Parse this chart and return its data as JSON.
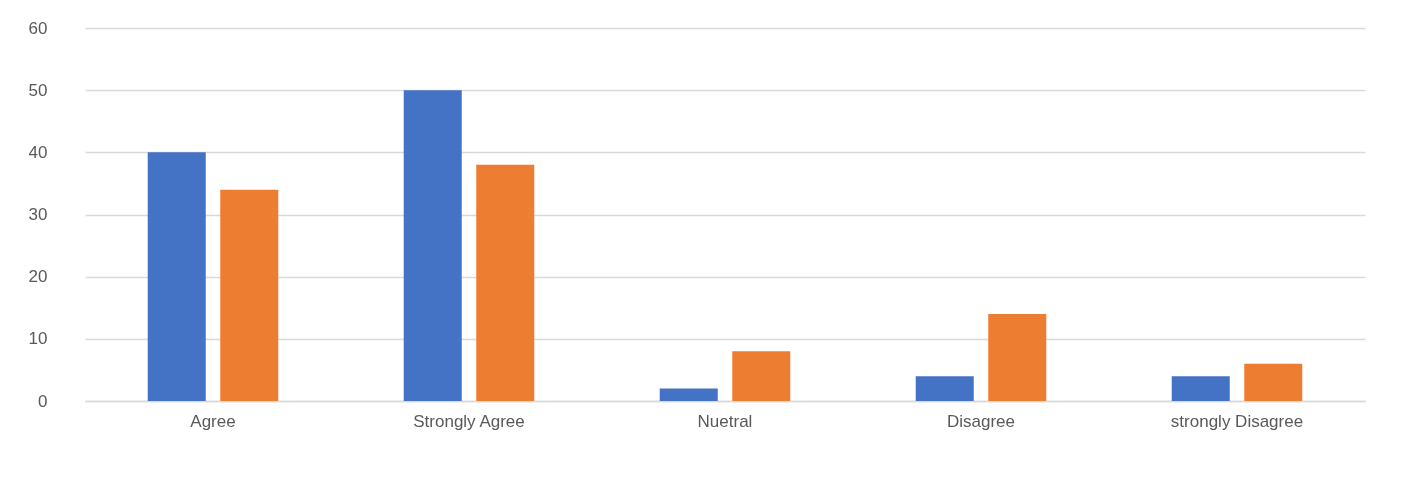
{
  "chart_data": {
    "type": "bar",
    "categories": [
      "Agree",
      "Strongly Agree",
      "Nuetral",
      "Disagree",
      "strongly Disagree"
    ],
    "series": [
      {
        "color": "#4472c4",
        "values": [
          40,
          50,
          2,
          4,
          4
        ]
      },
      {
        "color": "#ed7d31",
        "values": [
          34,
          38,
          8,
          14,
          6
        ]
      }
    ],
    "ylim": [
      0,
      60
    ],
    "yticks": [
      0,
      10,
      20,
      30,
      40,
      50,
      60
    ],
    "grid": "y"
  }
}
